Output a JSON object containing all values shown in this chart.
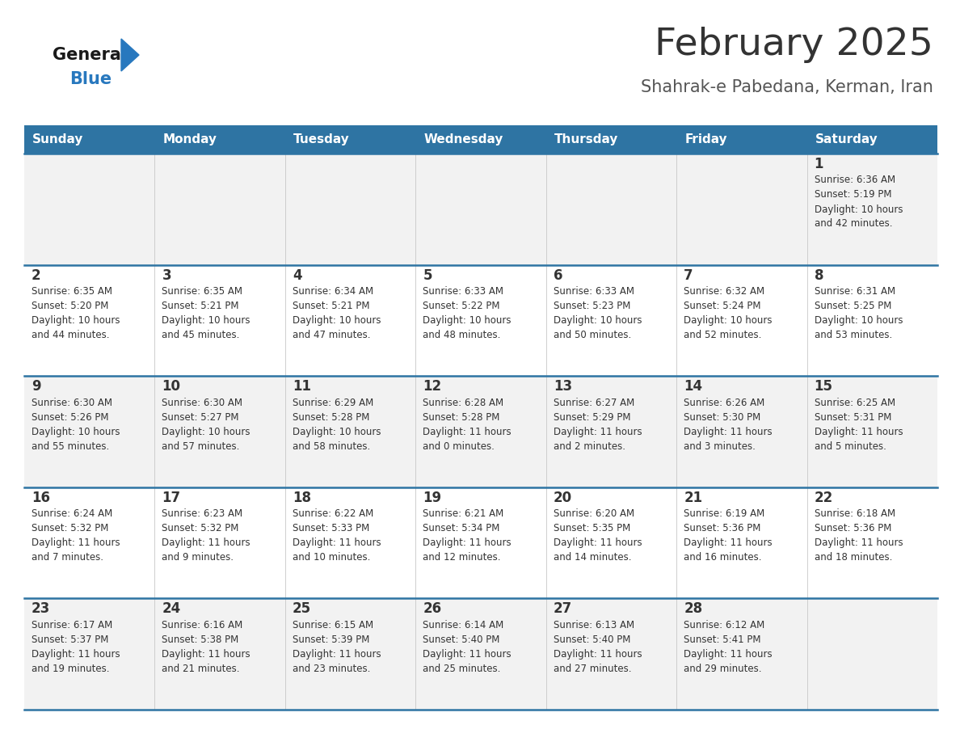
{
  "title": "February 2025",
  "subtitle": "Shahrak-e Pabedana, Kerman, Iran",
  "days_of_week": [
    "Sunday",
    "Monday",
    "Tuesday",
    "Wednesday",
    "Thursday",
    "Friday",
    "Saturday"
  ],
  "header_bg": "#2e74a3",
  "header_text": "#ffffff",
  "row_bg": [
    "#f2f2f2",
    "#ffffff",
    "#f2f2f2",
    "#ffffff",
    "#f2f2f2"
  ],
  "cell_text": "#333333",
  "separator_color": "#2e74a3",
  "title_color": "#333333",
  "subtitle_color": "#555555",
  "logo_general_color": "#1a1a1a",
  "logo_blue_color": "#2878be",
  "calendar_data": [
    [
      null,
      null,
      null,
      null,
      null,
      null,
      {
        "day": 1,
        "sunrise": "6:36 AM",
        "sunset": "5:19 PM",
        "daylight": "10 hours and 42 minutes."
      }
    ],
    [
      {
        "day": 2,
        "sunrise": "6:35 AM",
        "sunset": "5:20 PM",
        "daylight": "10 hours and 44 minutes."
      },
      {
        "day": 3,
        "sunrise": "6:35 AM",
        "sunset": "5:21 PM",
        "daylight": "10 hours and 45 minutes."
      },
      {
        "day": 4,
        "sunrise": "6:34 AM",
        "sunset": "5:21 PM",
        "daylight": "10 hours and 47 minutes."
      },
      {
        "day": 5,
        "sunrise": "6:33 AM",
        "sunset": "5:22 PM",
        "daylight": "10 hours and 48 minutes."
      },
      {
        "day": 6,
        "sunrise": "6:33 AM",
        "sunset": "5:23 PM",
        "daylight": "10 hours and 50 minutes."
      },
      {
        "day": 7,
        "sunrise": "6:32 AM",
        "sunset": "5:24 PM",
        "daylight": "10 hours and 52 minutes."
      },
      {
        "day": 8,
        "sunrise": "6:31 AM",
        "sunset": "5:25 PM",
        "daylight": "10 hours and 53 minutes."
      }
    ],
    [
      {
        "day": 9,
        "sunrise": "6:30 AM",
        "sunset": "5:26 PM",
        "daylight": "10 hours and 55 minutes."
      },
      {
        "day": 10,
        "sunrise": "6:30 AM",
        "sunset": "5:27 PM",
        "daylight": "10 hours and 57 minutes."
      },
      {
        "day": 11,
        "sunrise": "6:29 AM",
        "sunset": "5:28 PM",
        "daylight": "10 hours and 58 minutes."
      },
      {
        "day": 12,
        "sunrise": "6:28 AM",
        "sunset": "5:28 PM",
        "daylight": "11 hours and 0 minutes."
      },
      {
        "day": 13,
        "sunrise": "6:27 AM",
        "sunset": "5:29 PM",
        "daylight": "11 hours and 2 minutes."
      },
      {
        "day": 14,
        "sunrise": "6:26 AM",
        "sunset": "5:30 PM",
        "daylight": "11 hours and 3 minutes."
      },
      {
        "day": 15,
        "sunrise": "6:25 AM",
        "sunset": "5:31 PM",
        "daylight": "11 hours and 5 minutes."
      }
    ],
    [
      {
        "day": 16,
        "sunrise": "6:24 AM",
        "sunset": "5:32 PM",
        "daylight": "11 hours and 7 minutes."
      },
      {
        "day": 17,
        "sunrise": "6:23 AM",
        "sunset": "5:32 PM",
        "daylight": "11 hours and 9 minutes."
      },
      {
        "day": 18,
        "sunrise": "6:22 AM",
        "sunset": "5:33 PM",
        "daylight": "11 hours and 10 minutes."
      },
      {
        "day": 19,
        "sunrise": "6:21 AM",
        "sunset": "5:34 PM",
        "daylight": "11 hours and 12 minutes."
      },
      {
        "day": 20,
        "sunrise": "6:20 AM",
        "sunset": "5:35 PM",
        "daylight": "11 hours and 14 minutes."
      },
      {
        "day": 21,
        "sunrise": "6:19 AM",
        "sunset": "5:36 PM",
        "daylight": "11 hours and 16 minutes."
      },
      {
        "day": 22,
        "sunrise": "6:18 AM",
        "sunset": "5:36 PM",
        "daylight": "11 hours and 18 minutes."
      }
    ],
    [
      {
        "day": 23,
        "sunrise": "6:17 AM",
        "sunset": "5:37 PM",
        "daylight": "11 hours and 19 minutes."
      },
      {
        "day": 24,
        "sunrise": "6:16 AM",
        "sunset": "5:38 PM",
        "daylight": "11 hours and 21 minutes."
      },
      {
        "day": 25,
        "sunrise": "6:15 AM",
        "sunset": "5:39 PM",
        "daylight": "11 hours and 23 minutes."
      },
      {
        "day": 26,
        "sunrise": "6:14 AM",
        "sunset": "5:40 PM",
        "daylight": "11 hours and 25 minutes."
      },
      {
        "day": 27,
        "sunrise": "6:13 AM",
        "sunset": "5:40 PM",
        "daylight": "11 hours and 27 minutes."
      },
      {
        "day": 28,
        "sunrise": "6:12 AM",
        "sunset": "5:41 PM",
        "daylight": "11 hours and 29 minutes."
      },
      null
    ]
  ]
}
